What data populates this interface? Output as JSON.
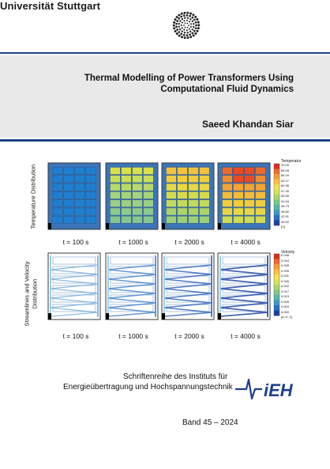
{
  "university": {
    "name": "Universität Stuttgart",
    "logo_icon": "university-stuttgart-dot-logo-icon"
  },
  "colors": {
    "accent_blue": "#1f3f8a",
    "band_gray": "#e9e9e9"
  },
  "book": {
    "title_line1": "Thermal Modelling of Power Transformers Using",
    "title_line2": "Computational Fluid Dynamics",
    "author": "Saeed Khandan Siar"
  },
  "figure": {
    "row1_label": "Temperature Distribution",
    "row2_label_line1": "Streamlines and Velocity",
    "row2_label_line2": "Distribution",
    "time_labels": [
      "t = 100 s",
      "t = 1000 s",
      "t = 2000 s",
      "t = 4000 s"
    ],
    "temperature_legend": {
      "title": "Temperatur",
      "ticks": [
        "70.00",
        "68.08",
        "66.16",
        "63.27",
        "60.36",
        "57.45",
        "54.55",
        "51.64",
        "48.73",
        "45.82",
        "42.91",
        "40.00",
        "[C]"
      ]
    },
    "velocity_legend": {
      "title": "Velocity",
      "ticks": [
        "0.048",
        "0.044",
        "0.039",
        "0.035",
        "0.031",
        "0.026",
        "0.022",
        "0.017",
        "0.013",
        "0.009",
        "0.004",
        "0.000",
        "[m s^-1]"
      ]
    }
  },
  "series": {
    "line1": "Schriftenreihe des Instituts für",
    "line2": "Energieübertragung und Hochspannungstechnik",
    "band": "Band 45 – 2024",
    "logo_text": "iEH",
    "logo_icon": "ieh-lightning-logo-icon"
  }
}
